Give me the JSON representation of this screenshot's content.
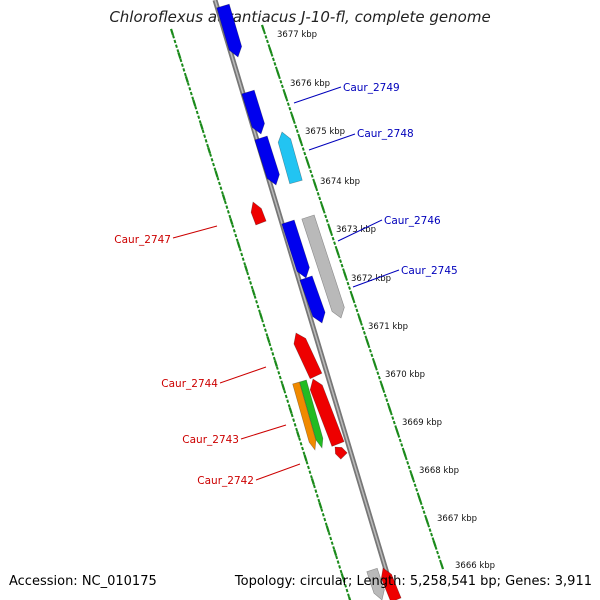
{
  "title": "Chloroflexus aurantiacus J-10-fl, complete genome",
  "footer": {
    "accession": "Accession: NC_010175",
    "summary": "Topology: circular; Length: 5,258,541 bp; Genes: 3,911"
  },
  "colors": {
    "blue": "#0000ee",
    "cyan": "#22c4f2",
    "gray": "#b9b9b9",
    "red": "#ee0000",
    "orange": "#f08a00",
    "green": "#22bb22",
    "label_blue": "#0000bb",
    "label_red": "#cc0000",
    "ticks": "#1a8a1a"
  },
  "kbp_labels": [
    "3677 kbp",
    "3676 kbp",
    "3675 kbp",
    "3674 kbp",
    "3673 kbp",
    "3672 kbp",
    "3671 kbp",
    "3670 kbp",
    "3669 kbp",
    "3668 kbp",
    "3667 kbp",
    "3666 kbp"
  ],
  "gene_labels": [
    "Caur_2749",
    "Caur_2748",
    "Caur_2747",
    "Caur_2746",
    "Caur_2745",
    "Caur_2744",
    "Caur_2743",
    "Caur_2742"
  ]
}
